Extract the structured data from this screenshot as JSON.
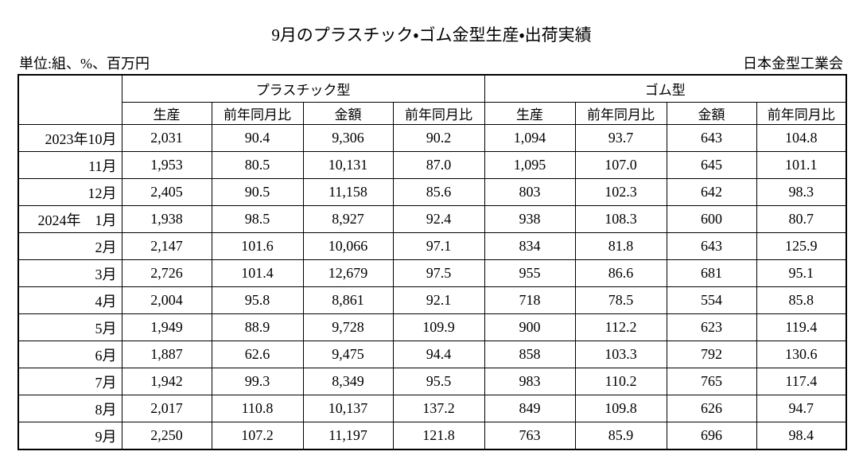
{
  "header": {
    "title": "9月のプラスチック・ゴム金型生産・出荷実績",
    "unit": "単位:組、%、百万円",
    "source": "日本金型工業会"
  },
  "table": {
    "groups": [
      "プラスチック型",
      "ゴム型"
    ],
    "columns": [
      "生産",
      "前年同月比",
      "金額",
      "前年同月比",
      "生産",
      "前年同月比",
      "金額",
      "前年同月比"
    ],
    "rows": [
      {
        "label": "2023年10月",
        "cells": [
          "2,031",
          "90.4",
          "9,306",
          "90.2",
          "1,094",
          "93.7",
          "643",
          "104.8"
        ]
      },
      {
        "label": "11月",
        "cells": [
          "1,953",
          "80.5",
          "10,131",
          "87.0",
          "1,095",
          "107.0",
          "645",
          "101.1"
        ]
      },
      {
        "label": "12月",
        "cells": [
          "2,405",
          "90.5",
          "11,158",
          "85.6",
          "803",
          "102.3",
          "642",
          "98.3"
        ]
      },
      {
        "label": "2024年　1月",
        "cells": [
          "1,938",
          "98.5",
          "8,927",
          "92.4",
          "938",
          "108.3",
          "600",
          "80.7"
        ]
      },
      {
        "label": "2月",
        "cells": [
          "2,147",
          "101.6",
          "10,066",
          "97.1",
          "834",
          "81.8",
          "643",
          "125.9"
        ]
      },
      {
        "label": "3月",
        "cells": [
          "2,726",
          "101.4",
          "12,679",
          "97.5",
          "955",
          "86.6",
          "681",
          "95.1"
        ]
      },
      {
        "label": "4月",
        "cells": [
          "2,004",
          "95.8",
          "8,861",
          "92.1",
          "718",
          "78.5",
          "554",
          "85.8"
        ]
      },
      {
        "label": "5月",
        "cells": [
          "1,949",
          "88.9",
          "9,728",
          "109.9",
          "900",
          "112.2",
          "623",
          "119.4"
        ]
      },
      {
        "label": "6月",
        "cells": [
          "1,887",
          "62.6",
          "9,475",
          "94.4",
          "858",
          "103.3",
          "792",
          "130.6"
        ]
      },
      {
        "label": "7月",
        "cells": [
          "1,942",
          "99.3",
          "8,349",
          "95.5",
          "983",
          "110.2",
          "765",
          "117.4"
        ]
      },
      {
        "label": "8月",
        "cells": [
          "2,017",
          "110.8",
          "10,137",
          "137.2",
          "849",
          "109.8",
          "626",
          "94.7"
        ]
      },
      {
        "label": "9月",
        "cells": [
          "2,250",
          "107.2",
          "11,197",
          "121.8",
          "763",
          "85.9",
          "696",
          "98.4"
        ]
      }
    ]
  }
}
